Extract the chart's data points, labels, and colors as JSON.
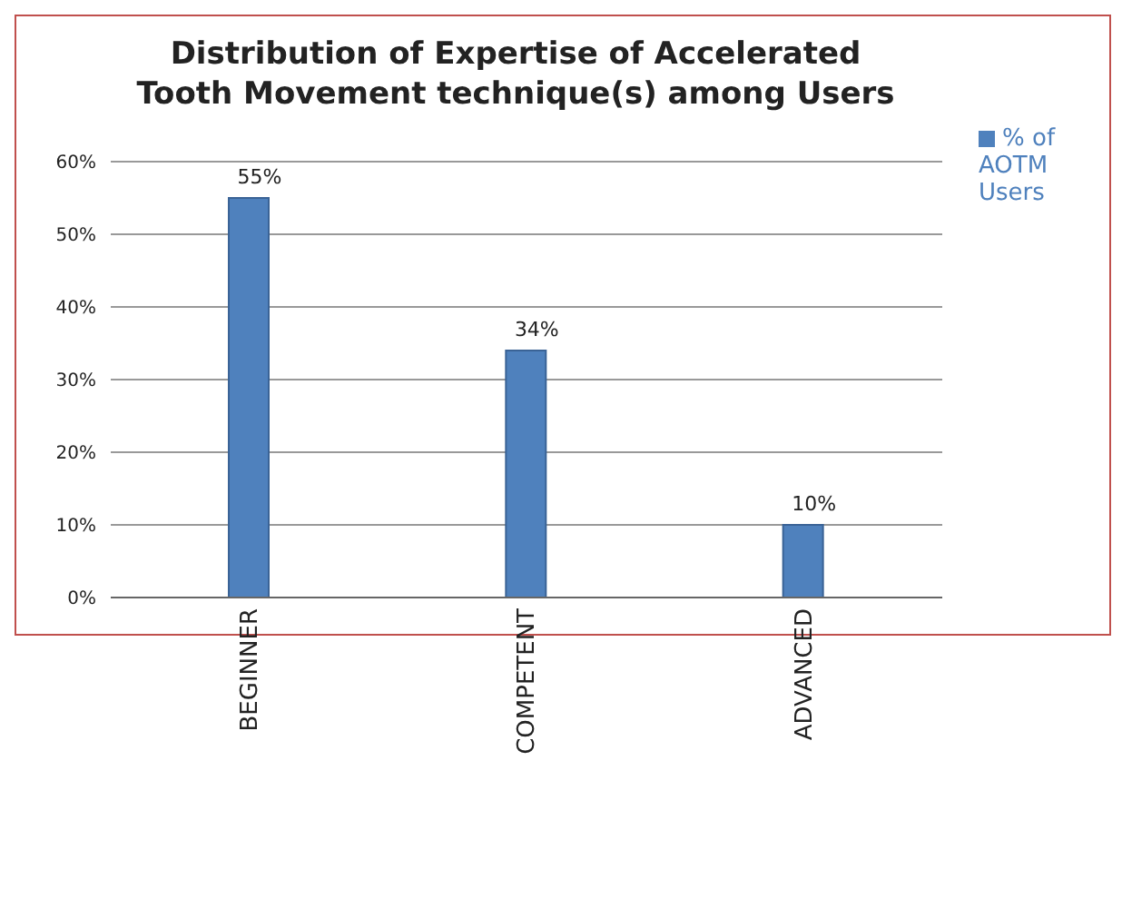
{
  "chart_data": {
    "type": "bar",
    "title": "Distribution of Expertise of Accelerated Tooth Movement technique(s) among Users",
    "categories": [
      "BEGINNER",
      "COMPETENT",
      "ADVANCED"
    ],
    "series": [
      {
        "name": "% of AOTM Users",
        "color": "#4f81bd",
        "values": [
          55,
          34,
          10
        ],
        "value_labels": [
          "55%",
          "34%",
          "10%"
        ]
      }
    ],
    "ylim": [
      0,
      60
    ],
    "yticks": [
      {
        "value": 0,
        "label": "0%"
      },
      {
        "value": 10,
        "label": "10%"
      },
      {
        "value": 20,
        "label": "20%"
      },
      {
        "value": 30,
        "label": "30%"
      },
      {
        "value": 40,
        "label": "40%"
      },
      {
        "value": 50,
        "label": "50%"
      },
      {
        "value": 60,
        "label": "60%"
      }
    ],
    "grid": "y",
    "legend": "top right"
  }
}
